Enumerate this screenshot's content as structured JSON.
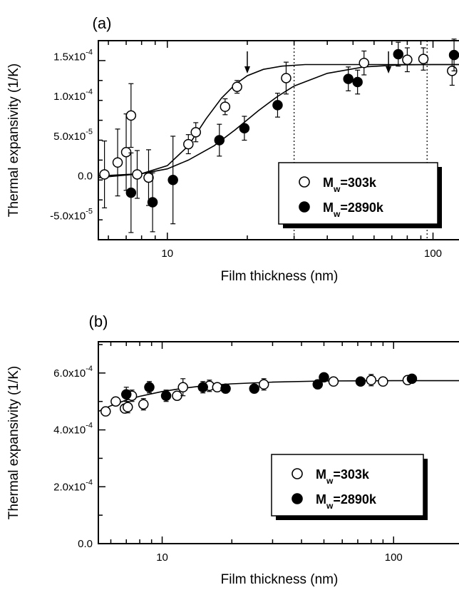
{
  "chart_data": [
    {
      "id": "a",
      "type": "scatter",
      "panel_label": "(a)",
      "xlabel": "Film thickness (nm)",
      "ylabel": "Thermal expansivity (1/K)",
      "xscale": "log",
      "xlim": [
        5.5,
        130
      ],
      "ylim": [
        -8e-05,
        0.00017
      ],
      "xticks": [
        {
          "v": 10,
          "label": "10"
        },
        {
          "v": 100,
          "label": "100"
        }
      ],
      "yticks": [
        {
          "v": 0.00015,
          "base": "1.5x10",
          "exp": "-4"
        },
        {
          "v": 0.0001,
          "base": "1.0x10",
          "exp": "-4"
        },
        {
          "v": 5e-05,
          "base": "5.0x10",
          "exp": "-5"
        },
        {
          "v": 0,
          "base": "0.0",
          "exp": ""
        },
        {
          "v": -5e-05,
          "base": "-5.0x10",
          "exp": "-5"
        }
      ],
      "vlines": [
        30,
        95
      ],
      "arrows": [
        20,
        68
      ],
      "legend": {
        "position": "lower-right",
        "entries": [
          {
            "marker": "open",
            "prefix": "M",
            "sub": "w",
            "suffix": "=303k"
          },
          {
            "marker": "filled",
            "prefix": "M",
            "sub": "w",
            "suffix": "=2890k"
          }
        ]
      },
      "series": [
        {
          "name": "Mw=303k",
          "marker": "open",
          "points": [
            {
              "x": 5.8,
              "y": 2e-06,
              "e": 4.2e-05
            },
            {
              "x": 6.5,
              "y": 1.7e-05,
              "e": 4.2e-05
            },
            {
              "x": 7.0,
              "y": 3e-05,
              "e": 4.8e-05
            },
            {
              "x": 7.3,
              "y": 7.6e-05,
              "e": 4e-05
            },
            {
              "x": 7.7,
              "y": 2e-06,
              "e": 3e-05
            },
            {
              "x": 8.5,
              "y": -2e-06,
              "e": 3.5e-05
            },
            {
              "x": 12.0,
              "y": 4e-05,
              "e": 1.2e-05
            },
            {
              "x": 12.8,
              "y": 5.5e-05,
              "e": 1.2e-05
            },
            {
              "x": 16.5,
              "y": 8.7e-05,
              "e": 1e-05
            },
            {
              "x": 18.3,
              "y": 0.000112,
              "e": 8e-06
            },
            {
              "x": 28.0,
              "y": 0.000123,
              "e": 2e-05
            },
            {
              "x": 55.0,
              "y": 0.000142,
              "e": 1.5e-05
            },
            {
              "x": 80.0,
              "y": 0.000146,
              "e": 1.5e-05
            },
            {
              "x": 92.0,
              "y": 0.000147,
              "e": 1.4e-05
            },
            {
              "x": 118.0,
              "y": 0.000132,
              "e": 1.8e-05
            }
          ]
        },
        {
          "name": "Mw=2890k",
          "marker": "filled",
          "points": [
            {
              "x": 7.3,
              "y": -2.1e-05,
              "e": 5e-05
            },
            {
              "x": 8.8,
              "y": -3.3e-05,
              "e": 3.7e-05
            },
            {
              "x": 10.5,
              "y": -5e-06,
              "e": 5.5e-05
            },
            {
              "x": 15.7,
              "y": 4.5e-05,
              "e": 2e-05
            },
            {
              "x": 19.5,
              "y": 6e-05,
              "e": 1.5e-05
            },
            {
              "x": 26.0,
              "y": 8.9e-05,
              "e": 1.5e-05
            },
            {
              "x": 48.0,
              "y": 0.000122,
              "e": 1.5e-05
            },
            {
              "x": 52.0,
              "y": 0.000118,
              "e": 1.5e-05
            },
            {
              "x": 74.0,
              "y": 0.000153,
              "e": 1.5e-05
            },
            {
              "x": 120.0,
              "y": 0.000152,
              "e": 2e-05
            }
          ]
        }
      ],
      "curves": [
        {
          "series": "Mw=303k",
          "points": [
            [
              5.5,
              0.0
            ],
            [
              8,
              3e-06
            ],
            [
              10,
              1.3e-05
            ],
            [
              12,
              3.8e-05
            ],
            [
              14,
              7.2e-05
            ],
            [
              16,
              9.8e-05
            ],
            [
              18,
              0.000115
            ],
            [
              20,
              0.000126
            ],
            [
              23,
              0.000134
            ],
            [
              27,
              0.000138
            ],
            [
              33,
              0.00014
            ],
            [
              50,
              0.00014
            ],
            [
              130,
              0.00014
            ]
          ]
        },
        {
          "series": "Mw=2890k",
          "points": [
            [
              5.5,
              -2e-06
            ],
            [
              8,
              3e-06
            ],
            [
              10,
              9e-06
            ],
            [
              12,
              2e-05
            ],
            [
              15,
              3.8e-05
            ],
            [
              18,
              5.8e-05
            ],
            [
              22,
              8.2e-05
            ],
            [
              26,
              0.0001
            ],
            [
              30,
              0.000113
            ],
            [
              40,
              0.000129
            ],
            [
              55,
              0.000137
            ],
            [
              75,
              0.0001395
            ],
            [
              100,
              0.00014
            ],
            [
              130,
              0.00014
            ]
          ]
        }
      ]
    },
    {
      "id": "b",
      "type": "scatter",
      "panel_label": "(b)",
      "xlabel": "Film thickness (nm)",
      "ylabel": "Thermal expansivity (1/K)",
      "xscale": "log",
      "xlim": [
        5.3,
        200
      ],
      "ylim": [
        0,
        0.00071
      ],
      "xticks": [
        {
          "v": 10,
          "label": "10"
        },
        {
          "v": 100,
          "label": "100"
        }
      ],
      "yticks": [
        {
          "v": 0.0006,
          "base": "6.0x10",
          "exp": "-4"
        },
        {
          "v": 0.0004,
          "base": "4.0x10",
          "exp": "-4"
        },
        {
          "v": 0.0002,
          "base": "2.0x10",
          "exp": "-4"
        },
        {
          "v": 0,
          "base": "0.0",
          "exp": ""
        }
      ],
      "vlines": [],
      "arrows": [],
      "legend": {
        "position": "lower-right",
        "entries": [
          {
            "marker": "open",
            "prefix": "M",
            "sub": "w",
            "suffix": "=303k"
          },
          {
            "marker": "filled",
            "prefix": "M",
            "sub": "w",
            "suffix": "=2890k"
          }
        ]
      },
      "series": [
        {
          "name": "Mw=303k",
          "marker": "open",
          "points": [
            {
              "x": 5.7,
              "y": 0.000465,
              "e": 1.5e-05
            },
            {
              "x": 6.3,
              "y": 0.0005,
              "e": 1.5e-05
            },
            {
              "x": 6.9,
              "y": 0.000475,
              "e": 1.5e-05
            },
            {
              "x": 7.1,
              "y": 0.00048,
              "e": 2e-05
            },
            {
              "x": 7.4,
              "y": 0.00052,
              "e": 2e-05
            },
            {
              "x": 8.3,
              "y": 0.00049,
              "e": 2e-05
            },
            {
              "x": 11.6,
              "y": 0.00052,
              "e": 1.5e-05
            },
            {
              "x": 12.3,
              "y": 0.00055,
              "e": 3e-05
            },
            {
              "x": 16.0,
              "y": 0.000555,
              "e": 2e-05
            },
            {
              "x": 17.3,
              "y": 0.00055,
              "e": 1.5e-05
            },
            {
              "x": 27.5,
              "y": 0.00056,
              "e": 2e-05
            },
            {
              "x": 55.0,
              "y": 0.00057,
              "e": 1.5e-05
            },
            {
              "x": 80.0,
              "y": 0.000575,
              "e": 2e-05
            },
            {
              "x": 90.0,
              "y": 0.00057,
              "e": 1.5e-05
            },
            {
              "x": 115.0,
              "y": 0.000575,
              "e": 1.5e-05
            }
          ]
        },
        {
          "name": "Mw=2890k",
          "marker": "filled",
          "points": [
            {
              "x": 7.0,
              "y": 0.000525,
              "e": 2.5e-05
            },
            {
              "x": 8.8,
              "y": 0.00055,
              "e": 2e-05
            },
            {
              "x": 10.4,
              "y": 0.00052,
              "e": 2e-05
            },
            {
              "x": 15.0,
              "y": 0.00055,
              "e": 2e-05
            },
            {
              "x": 18.8,
              "y": 0.000545,
              "e": 1.5e-05
            },
            {
              "x": 25.0,
              "y": 0.000545,
              "e": 1.5e-05
            },
            {
              "x": 47.0,
              "y": 0.00056,
              "e": 1.5e-05
            },
            {
              "x": 50.0,
              "y": 0.000585,
              "e": 1e-05
            },
            {
              "x": 72.0,
              "y": 0.00057,
              "e": 1e-05
            },
            {
              "x": 120.0,
              "y": 0.00058,
              "e": 1e-05
            }
          ]
        }
      ],
      "curves": [
        {
          "series": "fit",
          "points": [
            [
              5.3,
              0.000465
            ],
            [
              6,
              0.000485
            ],
            [
              7,
              0.000505
            ],
            [
              8,
              0.000518
            ],
            [
              10,
              0.000535
            ],
            [
              12,
              0.000545
            ],
            [
              15,
              0.000555
            ],
            [
              20,
              0.000562
            ],
            [
              30,
              0.000568
            ],
            [
              50,
              0.000572
            ],
            [
              100,
              0.000573
            ],
            [
              200,
              0.000573
            ]
          ]
        }
      ]
    }
  ]
}
